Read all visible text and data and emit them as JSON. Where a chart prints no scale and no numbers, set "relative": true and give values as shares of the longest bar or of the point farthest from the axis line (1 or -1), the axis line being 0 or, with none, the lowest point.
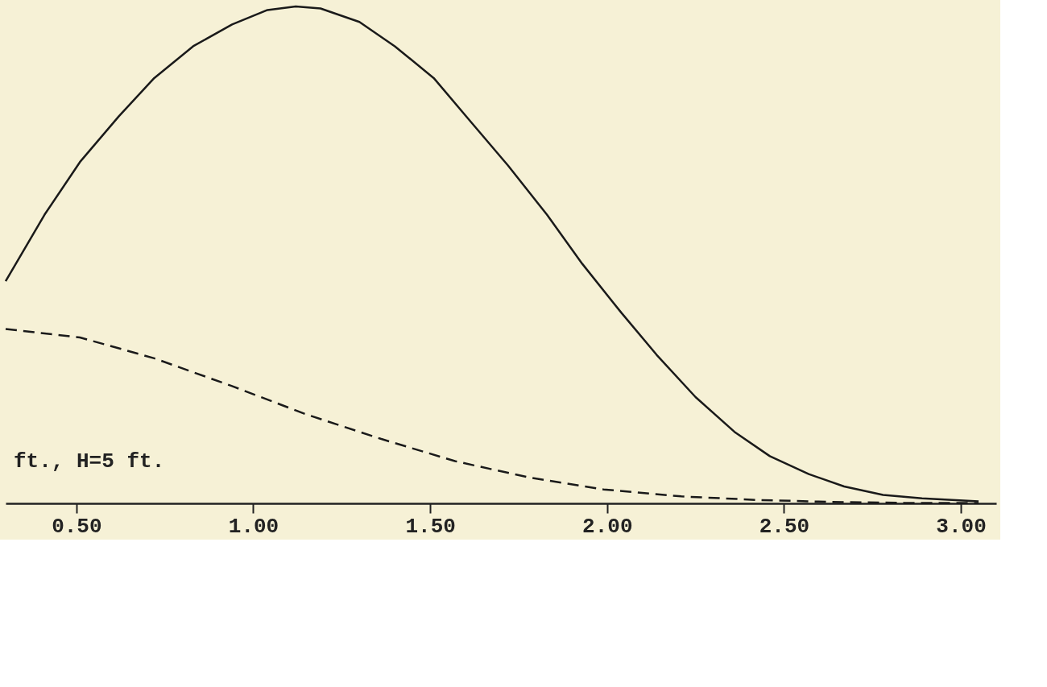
{
  "chart_data": {
    "type": "line",
    "relative": true,
    "tick_labels": "x",
    "marker": "none",
    "xlim": [
      0.3,
      3.1
    ],
    "xticks": [
      {
        "value": 0.5,
        "label": "0.50"
      },
      {
        "value": 1.0,
        "label": "1.00"
      },
      {
        "value": 1.5,
        "label": "1.50"
      },
      {
        "value": 2.0,
        "label": "2.00"
      },
      {
        "value": 2.5,
        "label": "2.50"
      },
      {
        "value": 3.0,
        "label": "3.00"
      }
    ],
    "annotations": [
      "ft., H=5 ft."
    ],
    "series": [
      {
        "color": "#1a1a1a",
        "line_style": "solid",
        "x": [
          0.3,
          0.41,
          0.51,
          0.62,
          0.72,
          0.83,
          0.94,
          1.04,
          1.12,
          1.19,
          1.3,
          1.4,
          1.51,
          1.61,
          1.72,
          1.83,
          1.93,
          2.04,
          2.14,
          2.25,
          2.36,
          2.46,
          2.57,
          2.67,
          2.78,
          2.89,
          3.05
        ],
        "values": [
          0.447,
          0.581,
          0.687,
          0.779,
          0.856,
          0.92,
          0.964,
          0.993,
          1.0,
          0.996,
          0.969,
          0.92,
          0.856,
          0.772,
          0.68,
          0.581,
          0.482,
          0.384,
          0.299,
          0.214,
          0.144,
          0.095,
          0.059,
          0.034,
          0.017,
          0.01,
          0.004
        ]
      },
      {
        "color": "#1a1a1a",
        "line_style": "dashed",
        "x": [
          0.3,
          0.51,
          0.72,
          0.94,
          1.15,
          1.36,
          1.57,
          1.78,
          1.99,
          2.21,
          2.42,
          2.63,
          2.84,
          3.05
        ],
        "values": [
          0.351,
          0.334,
          0.292,
          0.236,
          0.179,
          0.13,
          0.085,
          0.052,
          0.028,
          0.014,
          0.007,
          0.003,
          0.001,
          0.001
        ]
      }
    ]
  }
}
